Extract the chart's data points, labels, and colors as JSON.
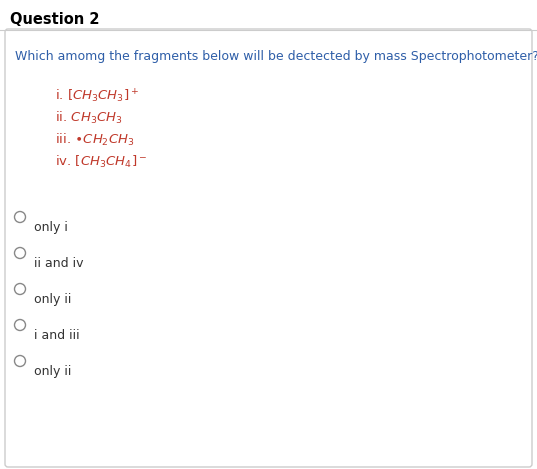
{
  "title": "Question 2",
  "question": "Which amomg the fragments below will be dectected by mass Spectrophotometer?",
  "fragment_lines": [
    "i. $[CH_3CH_3]^+$",
    "ii. $CH_3CH_3$",
    "iii. $\\bullet CH_2CH_3$",
    "iv. $[CH_3CH_4]^-$"
  ],
  "options": [
    "only i",
    "ii and iv",
    "only ii",
    "i and iii",
    "only ii"
  ],
  "bg_color": "#ffffff",
  "border_color": "#cccccc",
  "title_color": "#000000",
  "question_color": "#2e5ea8",
  "fragment_color": "#c0392b",
  "option_color": "#333333",
  "circle_color": "#888888",
  "title_fontsize": 10.5,
  "question_fontsize": 9.0,
  "fragment_fontsize": 9.5,
  "option_fontsize": 9.0
}
